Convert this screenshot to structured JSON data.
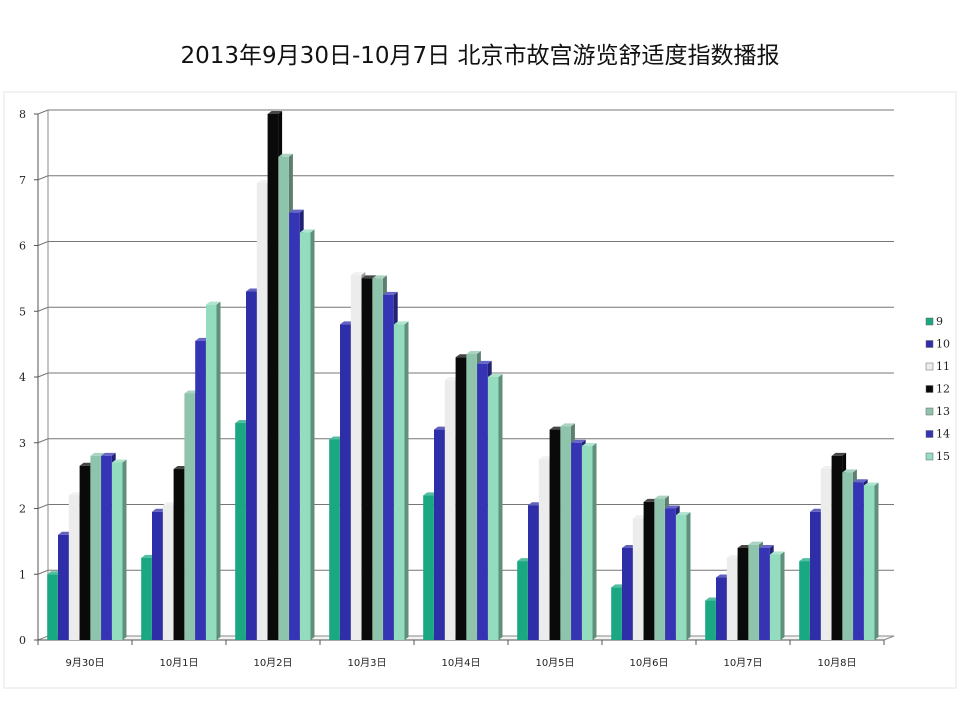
{
  "chart_data": {
    "type": "bar",
    "title": "2013年9月30日-10月7日 北京市故宫游览舒适度指数播报",
    "xlabel": "",
    "ylabel": "",
    "ylim": [
      0,
      8
    ],
    "yticks": [
      "0",
      "1",
      "2",
      "3",
      "4",
      "5",
      "6",
      "7",
      "8"
    ],
    "grid": true,
    "legend_position": "right",
    "categories": [
      "9月30日",
      "10月1日",
      "10月2日",
      "10月3日",
      "10月4日",
      "10月5日",
      "10月6日",
      "10月7日",
      "10月8日"
    ],
    "series": [
      {
        "name": "9",
        "color": "#1aa882",
        "values": [
          1.0,
          1.25,
          3.3,
          3.05,
          2.2,
          1.2,
          0.8,
          0.6,
          1.2
        ]
      },
      {
        "name": "10",
        "color": "#2e2ea8",
        "values": [
          1.6,
          1.95,
          5.3,
          4.8,
          3.2,
          2.05,
          1.4,
          0.95,
          1.95
        ]
      },
      {
        "name": "11",
        "color": "#ececec",
        "values": [
          2.2,
          2.05,
          6.95,
          5.55,
          3.95,
          2.75,
          1.85,
          1.25,
          2.6
        ]
      },
      {
        "name": "12",
        "color": "#0a0a0a",
        "values": [
          2.65,
          2.6,
          8.0,
          5.5,
          4.3,
          3.2,
          2.1,
          1.4,
          2.8
        ]
      },
      {
        "name": "13",
        "color": "#8fc4ac",
        "values": [
          2.8,
          3.75,
          7.35,
          5.5,
          4.35,
          3.25,
          2.15,
          1.45,
          2.55
        ]
      },
      {
        "name": "14",
        "color": "#3434b4",
        "values": [
          2.8,
          4.55,
          6.5,
          5.25,
          4.2,
          3.0,
          2.0,
          1.4,
          2.4
        ]
      },
      {
        "name": "15",
        "color": "#94dcbe",
        "values": [
          2.7,
          5.1,
          6.2,
          4.8,
          4.0,
          2.95,
          1.9,
          1.3,
          2.35
        ]
      }
    ]
  }
}
